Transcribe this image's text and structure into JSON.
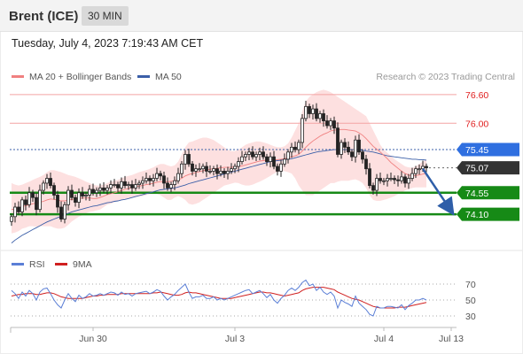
{
  "header": {
    "title": "Brent (ICE)",
    "interval": "30 MIN"
  },
  "timestamp": "Tuesday, July 4, 2023 7:19:43 AM CET",
  "watermark": "Research © 2023 Trading Central",
  "colors": {
    "ma20": "#f08080",
    "ma50": "#3b5fa8",
    "bollinger_fill": "#fde0e0",
    "resistance": "#f3a3a3",
    "support": "#168a16",
    "current_price": "#333333",
    "arrow": "#2e5ea8",
    "ma50_label": "#2f6fe0",
    "rsi": "#5b7fd6",
    "rsi_ma": "#d02020",
    "candle_up": "#ffffff",
    "candle_down": "#222222"
  },
  "chart_data": [
    {
      "type": "candlestick",
      "legend": [
        {
          "name": "MA 20 + Bollinger Bands",
          "color": "#f08080"
        },
        {
          "name": "MA 50",
          "color": "#3b5fa8"
        }
      ],
      "legend_placement": "top-left",
      "ylim": [
        73.4,
        76.8
      ],
      "price_levels": [
        {
          "value": 76.6,
          "label": "76.60",
          "kind": "resistance"
        },
        {
          "value": 76.0,
          "label": "76.00",
          "kind": "resistance"
        },
        {
          "value": 75.45,
          "label": "75.45",
          "kind": "ma50"
        },
        {
          "value": 75.07,
          "label": "75.07",
          "kind": "current"
        },
        {
          "value": 74.55,
          "label": "74.55",
          "kind": "support"
        },
        {
          "value": 74.1,
          "label": "74.10",
          "kind": "support"
        }
      ],
      "x_ticks": [
        {
          "label": "Jun 30",
          "index": 23
        },
        {
          "label": "Jul 3",
          "index": 63
        },
        {
          "label": "Jul 4",
          "index": 105
        },
        {
          "label": "Jul 13",
          "index": 124
        }
      ],
      "projection": {
        "from_index": 116,
        "from_value": 75.05,
        "to_index": 124,
        "to_value": 74.15
      },
      "close": [
        74.05,
        74.25,
        74.15,
        74.4,
        74.3,
        74.55,
        74.45,
        74.2,
        74.6,
        74.75,
        74.85,
        74.7,
        74.5,
        74.25,
        74.0,
        74.3,
        74.6,
        74.45,
        74.35,
        74.55,
        74.48,
        74.5,
        74.62,
        74.55,
        74.6,
        74.65,
        74.6,
        74.65,
        74.72,
        74.72,
        74.65,
        74.78,
        74.7,
        74.72,
        74.65,
        74.72,
        74.75,
        74.8,
        74.85,
        74.8,
        74.85,
        74.95,
        74.9,
        74.75,
        74.65,
        74.72,
        74.8,
        74.95,
        75.15,
        75.35,
        75.15,
        75.0,
        75.05,
        75.05,
        75.1,
        75.0,
        75.0,
        75.05,
        74.95,
        75.0,
        74.95,
        75.0,
        75.05,
        75.1,
        75.2,
        75.3,
        75.35,
        75.4,
        75.3,
        75.35,
        75.4,
        75.3,
        75.2,
        75.3,
        75.1,
        75.0,
        75.15,
        75.25,
        75.4,
        75.5,
        75.45,
        75.6,
        76.1,
        76.35,
        76.2,
        76.3,
        76.1,
        76.2,
        76.05,
        75.95,
        76.05,
        75.9,
        75.35,
        75.6,
        75.5,
        75.4,
        75.3,
        75.65,
        75.4,
        75.25,
        75.05,
        74.7,
        74.6,
        74.85,
        74.8,
        74.8,
        74.85,
        74.85,
        74.82,
        74.8,
        74.88,
        74.75,
        74.85,
        74.95,
        75.05,
        75.05,
        75.1,
        75.07
      ],
      "ma20": [
        74.2,
        74.21,
        74.23,
        74.26,
        74.28,
        74.3,
        74.32,
        74.33,
        74.35,
        74.37,
        74.4,
        74.42,
        74.41,
        74.4,
        74.38,
        74.38,
        74.4,
        74.41,
        74.42,
        74.43,
        74.44,
        74.44,
        74.44,
        74.43,
        74.43,
        74.45,
        74.48,
        74.51,
        74.53,
        74.55,
        74.57,
        74.6,
        74.62,
        74.64,
        74.66,
        74.68,
        74.69,
        74.7,
        74.72,
        74.73,
        74.75,
        74.77,
        74.78,
        74.78,
        74.78,
        74.79,
        74.8,
        74.82,
        74.85,
        74.9,
        74.93,
        74.95,
        74.97,
        74.99,
        75.01,
        75.03,
        75.04,
        75.05,
        75.06,
        75.07,
        75.08,
        75.08,
        75.08,
        75.09,
        75.1,
        75.11,
        75.13,
        75.15,
        75.17,
        75.19,
        75.21,
        75.22,
        75.23,
        75.24,
        75.24,
        75.24,
        75.25,
        75.26,
        75.28,
        75.3,
        75.32,
        75.35,
        75.42,
        75.5,
        75.57,
        75.63,
        75.68,
        75.73,
        75.77,
        75.8,
        75.84,
        75.86,
        75.86,
        75.87,
        75.87,
        75.86,
        75.85,
        75.84,
        75.8,
        75.75,
        75.68,
        75.6,
        75.52,
        75.46,
        75.4,
        75.33,
        75.26,
        75.18,
        75.12,
        75.06,
        75.0,
        74.95,
        74.92,
        74.9,
        74.91,
        74.92,
        74.94,
        74.95
      ],
      "bb_upper": [
        74.75,
        74.72,
        74.7,
        74.72,
        74.75,
        74.78,
        74.82,
        74.85,
        74.88,
        74.92,
        74.98,
        75.02,
        75.02,
        75.0,
        74.98,
        74.95,
        74.92,
        74.9,
        74.88,
        74.85,
        74.82,
        74.78,
        74.75,
        74.72,
        74.7,
        74.7,
        74.72,
        74.75,
        74.78,
        74.8,
        74.82,
        74.85,
        74.88,
        74.9,
        74.92,
        74.95,
        74.98,
        75.0,
        75.02,
        75.05,
        75.08,
        75.12,
        75.15,
        75.15,
        75.12,
        75.1,
        75.12,
        75.2,
        75.35,
        75.5,
        75.6,
        75.62,
        75.65,
        75.68,
        75.7,
        75.7,
        75.68,
        75.65,
        75.6,
        75.55,
        75.5,
        75.45,
        75.42,
        75.42,
        75.45,
        75.5,
        75.55,
        75.58,
        75.6,
        75.62,
        75.62,
        75.6,
        75.58,
        75.55,
        75.52,
        75.5,
        75.5,
        75.52,
        75.58,
        75.7,
        75.85,
        76.0,
        76.25,
        76.45,
        76.55,
        76.6,
        76.65,
        76.68,
        76.7,
        76.68,
        76.65,
        76.6,
        76.55,
        76.5,
        76.45,
        76.4,
        76.35,
        76.3,
        76.25,
        76.2,
        76.15,
        76.0,
        75.85,
        75.7,
        75.55,
        75.45,
        75.38,
        75.32,
        75.25,
        75.2,
        75.15,
        75.1,
        75.08,
        75.07,
        75.1,
        75.15,
        75.2,
        75.25
      ],
      "bb_lower": [
        73.7,
        73.72,
        73.75,
        73.8,
        73.82,
        73.85,
        73.85,
        73.84,
        73.85,
        73.85,
        73.85,
        73.85,
        73.82,
        73.8,
        73.8,
        73.82,
        73.88,
        73.95,
        74.0,
        74.05,
        74.08,
        74.12,
        74.15,
        74.16,
        74.18,
        74.2,
        74.25,
        74.3,
        74.32,
        74.35,
        74.38,
        74.4,
        74.42,
        74.44,
        74.45,
        74.46,
        74.47,
        74.48,
        74.5,
        74.52,
        74.52,
        74.52,
        74.5,
        74.45,
        74.4,
        74.4,
        74.45,
        74.48,
        74.45,
        74.4,
        74.32,
        74.3,
        74.32,
        74.35,
        74.4,
        74.45,
        74.5,
        74.55,
        74.6,
        74.65,
        74.7,
        74.72,
        74.74,
        74.76,
        74.75,
        74.72,
        74.7,
        74.7,
        74.72,
        74.75,
        74.78,
        74.82,
        74.86,
        74.9,
        74.95,
        74.98,
        75.0,
        75.0,
        74.98,
        74.95,
        74.85,
        74.7,
        74.6,
        74.5,
        74.5,
        74.5,
        74.55,
        74.6,
        74.65,
        74.7,
        74.75,
        74.75,
        74.78,
        74.8,
        74.8,
        74.8,
        74.82,
        74.83,
        74.8,
        74.75,
        74.65,
        74.5,
        74.4,
        74.38,
        74.38,
        74.4,
        74.42,
        74.45,
        74.48,
        74.52,
        74.55,
        74.6,
        74.62,
        74.65,
        74.66,
        74.66,
        74.66,
        74.66
      ],
      "ma50": [
        73.5,
        73.56,
        73.61,
        73.66,
        73.7,
        73.74,
        73.78,
        73.82,
        73.86,
        73.9,
        73.94,
        73.97,
        74.0,
        74.03,
        74.06,
        74.09,
        74.12,
        74.15,
        74.17,
        74.19,
        74.21,
        74.23,
        74.25,
        74.27,
        74.28,
        74.3,
        74.32,
        74.34,
        74.35,
        74.37,
        74.38,
        74.4,
        74.41,
        74.43,
        74.45,
        74.47,
        74.49,
        74.51,
        74.53,
        74.55,
        74.57,
        74.59,
        74.61,
        74.62,
        74.63,
        74.64,
        74.65,
        74.67,
        74.69,
        74.71,
        74.74,
        74.76,
        74.78,
        74.8,
        74.82,
        74.84,
        74.86,
        74.88,
        74.9,
        74.92,
        74.94,
        74.96,
        74.98,
        75.0,
        75.02,
        75.04,
        75.06,
        75.08,
        75.1,
        75.12,
        75.14,
        75.16,
        75.18,
        75.2,
        75.21,
        75.22,
        75.23,
        75.24,
        75.25,
        75.26,
        75.28,
        75.3,
        75.32,
        75.34,
        75.36,
        75.38,
        75.4,
        75.41,
        75.42,
        75.43,
        75.44,
        75.45,
        75.45,
        75.45,
        75.45,
        75.45,
        75.45,
        75.45,
        75.44,
        75.43,
        75.42,
        75.41,
        75.4,
        75.38,
        75.36,
        75.34,
        75.32,
        75.31,
        75.3,
        75.29,
        75.28,
        75.27,
        75.26,
        75.25,
        75.25,
        75.24,
        75.24,
        75.23
      ]
    },
    {
      "type": "line",
      "legend": [
        {
          "name": "RSI",
          "color": "#5b7fd6"
        },
        {
          "name": "9MA",
          "color": "#d02020"
        }
      ],
      "legend_placement": "top-left",
      "ylim": [
        20,
        80
      ],
      "y_ticks": [
        70,
        50,
        30
      ],
      "series": [
        {
          "name": "RSI",
          "values": [
            62,
            58,
            52,
            60,
            55,
            62,
            58,
            50,
            60,
            64,
            65,
            58,
            50,
            44,
            40,
            50,
            58,
            52,
            48,
            56,
            52,
            54,
            58,
            55,
            56,
            58,
            56,
            58,
            60,
            59,
            56,
            60,
            57,
            58,
            55,
            58,
            59,
            60,
            61,
            58,
            60,
            63,
            61,
            55,
            50,
            54,
            57,
            62,
            66,
            70,
            60,
            52,
            54,
            54,
            56,
            52,
            52,
            54,
            50,
            52,
            50,
            52,
            54,
            56,
            58,
            60,
            62,
            63,
            58,
            60,
            62,
            58,
            53,
            57,
            50,
            46,
            52,
            56,
            62,
            65,
            62,
            66,
            72,
            75,
            68,
            70,
            62,
            66,
            60,
            57,
            60,
            55,
            40,
            50,
            47,
            45,
            42,
            55,
            46,
            42,
            38,
            32,
            30,
            42,
            40,
            40,
            42,
            42,
            41,
            40,
            44,
            38,
            43,
            46,
            50,
            50,
            52,
            50
          ]
        },
        {
          "name": "9MA",
          "values": [
            55,
            56,
            57,
            57,
            58,
            58,
            58,
            57,
            57,
            58,
            59,
            59,
            58,
            56,
            54,
            53,
            52,
            52,
            52,
            52,
            52,
            53,
            54,
            55,
            55,
            56,
            56,
            57,
            57,
            57,
            57,
            58,
            58,
            58,
            58,
            58,
            58,
            58,
            58,
            58,
            59,
            59,
            60,
            59,
            58,
            57,
            56,
            56,
            57,
            59,
            60,
            59,
            59,
            58,
            57,
            56,
            55,
            54,
            53,
            52,
            52,
            52,
            52,
            53,
            54,
            55,
            56,
            57,
            58,
            59,
            60,
            60,
            59,
            59,
            58,
            57,
            56,
            55,
            56,
            57,
            58,
            59,
            62,
            64,
            65,
            66,
            66,
            66,
            66,
            65,
            64,
            63,
            60,
            58,
            56,
            54,
            52,
            51,
            50,
            48,
            46,
            44,
            42,
            41,
            40,
            40,
            40,
            40,
            40,
            41,
            41,
            41,
            42,
            43,
            44,
            45,
            46,
            47
          ]
        }
      ]
    }
  ]
}
